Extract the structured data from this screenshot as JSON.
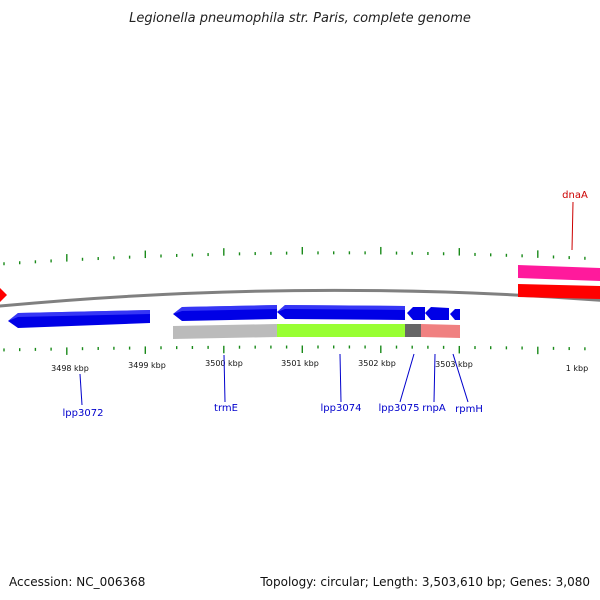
{
  "title": "Legionella pneumophila str. Paris, complete genome",
  "footer": {
    "accession": "Accession: NC_006368",
    "topology": "Topology: circular; Length: 3,503,610 bp; Genes: 3,080"
  },
  "colors": {
    "backbone": "#808080",
    "gene_blue": "#0000e6",
    "gene_red": "#ff0000",
    "gene_pink": "#ff1a9c",
    "gene_label_blue": "#0000cc",
    "gene_label_red": "#cc0000",
    "tick_green": "#1a8a1a"
  },
  "scale_labels": [
    "3498 kbp",
    "3499 kbp",
    "3500 kbp",
    "3501 kbp",
    "3502 kbp",
    "3503 kbp",
    "1 kbp"
  ],
  "genes": [
    {
      "label": "lpp3072",
      "color": "blue"
    },
    {
      "label": "trmE",
      "color": "blue"
    },
    {
      "label": "lpp3074",
      "color": "blue"
    },
    {
      "label": "lpp3075",
      "color": "blue"
    },
    {
      "label": "rnpA",
      "color": "blue"
    },
    {
      "label": "rpmH",
      "color": "blue"
    },
    {
      "label": "dnaA",
      "color": "red"
    }
  ]
}
